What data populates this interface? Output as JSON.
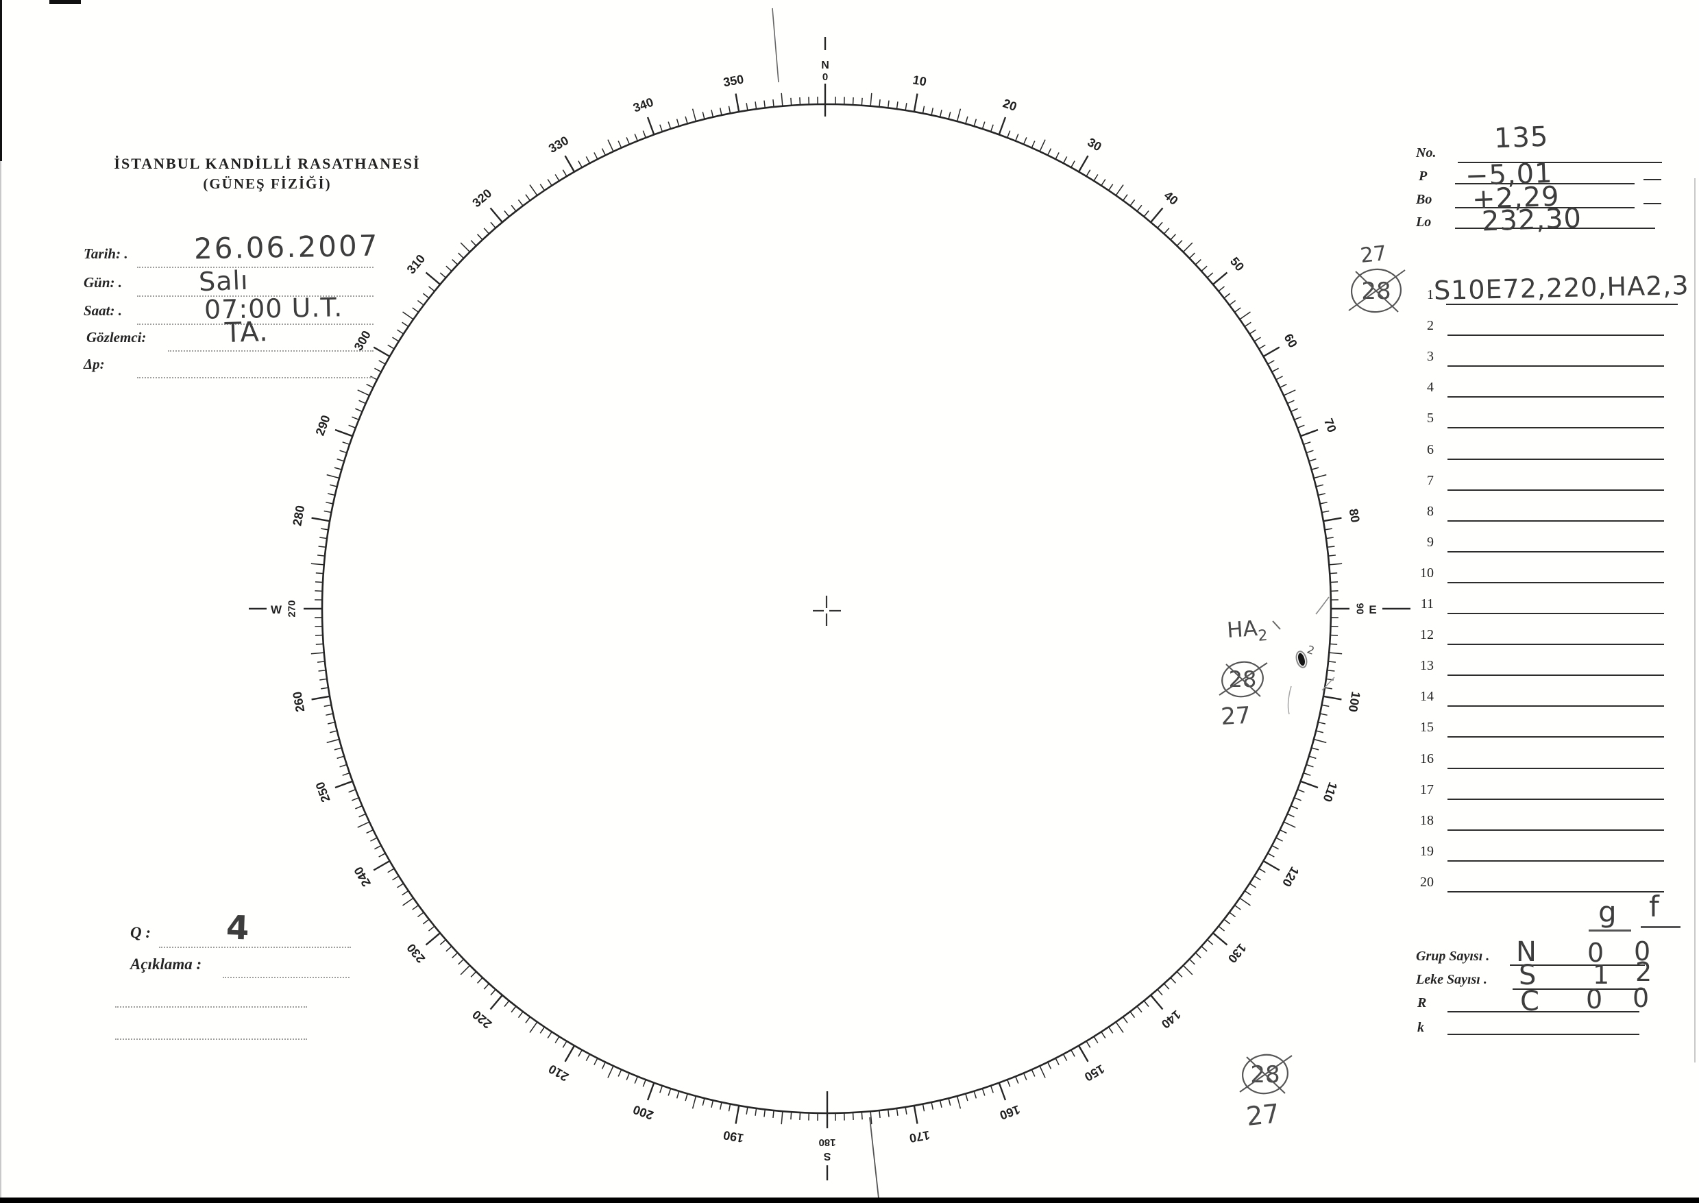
{
  "observatory": {
    "title": "İSTANBUL KANDİLLİ RASATHANESİ",
    "subtitle": "(GÜNEŞ FİZİĞİ)"
  },
  "fields": [
    {
      "label": "Tarih: .",
      "value": "26.06.2007"
    },
    {
      "label": "Gün: .",
      "value": "Salı"
    },
    {
      "label": "Saat: .",
      "value": "07:00 U.T."
    },
    {
      "label": "Gözlemci:",
      "value": "TA."
    },
    {
      "label": "Δp:",
      "value": ""
    }
  ],
  "quality": {
    "label": "Q :",
    "value": "4"
  },
  "remarks": {
    "label": "Açıklama :",
    "value": ""
  },
  "ephemeris": {
    "no": {
      "label": "No.",
      "value": "135"
    },
    "p": {
      "label": "P",
      "value": "−5,01"
    },
    "bo": {
      "label": "Bo",
      "value": "+2,29"
    },
    "lo": {
      "label": "Lo",
      "value": "232,30"
    }
  },
  "region_list": {
    "rows": [
      {
        "n": "1",
        "text": "S10E72,220,HA2,3"
      },
      {
        "n": "2",
        "text": ""
      },
      {
        "n": "3",
        "text": ""
      },
      {
        "n": "4",
        "text": ""
      },
      {
        "n": "5",
        "text": ""
      },
      {
        "n": "6",
        "text": ""
      },
      {
        "n": "7",
        "text": ""
      },
      {
        "n": "8",
        "text": ""
      },
      {
        "n": "9",
        "text": ""
      },
      {
        "n": "10",
        "text": ""
      },
      {
        "n": "11",
        "text": ""
      },
      {
        "n": "12",
        "text": ""
      },
      {
        "n": "13",
        "text": ""
      },
      {
        "n": "14",
        "text": ""
      },
      {
        "n": "15",
        "text": ""
      },
      {
        "n": "16",
        "text": ""
      },
      {
        "n": "17",
        "text": ""
      },
      {
        "n": "18",
        "text": ""
      },
      {
        "n": "19",
        "text": ""
      },
      {
        "n": "20",
        "text": ""
      }
    ]
  },
  "counts": {
    "col_g": "g",
    "col_f": "f",
    "rows": [
      {
        "label": "Grup Sayısı .",
        "letter": "N",
        "g": "0",
        "f": "0"
      },
      {
        "label": "Leke Sayısı .",
        "letter": "S",
        "g": "1",
        "f": "2"
      },
      {
        "label": "R",
        "letter": "C",
        "g": "0",
        "f": "0"
      },
      {
        "label": "k",
        "letter": "",
        "g": "",
        "f": ""
      }
    ]
  },
  "annotations": {
    "top_right": {
      "number": "27",
      "crossed_number": "28"
    },
    "disk_region": {
      "label": "HA",
      "label_sub": "2",
      "spot_index": "2",
      "crossed_number": "28",
      "number": "27"
    },
    "bottom_right": {
      "crossed_number": "28",
      "number": "27"
    }
  },
  "disk": {
    "cardinals": {
      "n": "N",
      "e": "E",
      "s": "S",
      "w": "W",
      "deg0": "0",
      "deg90": "90",
      "deg180": "180",
      "deg270": "270"
    },
    "degree_labels": [
      10,
      20,
      30,
      40,
      50,
      60,
      70,
      80,
      100,
      110,
      120,
      130,
      140,
      150,
      160,
      170,
      190,
      200,
      210,
      220,
      230,
      240,
      250,
      260,
      280,
      290,
      300,
      310,
      320,
      330,
      340,
      350
    ]
  }
}
